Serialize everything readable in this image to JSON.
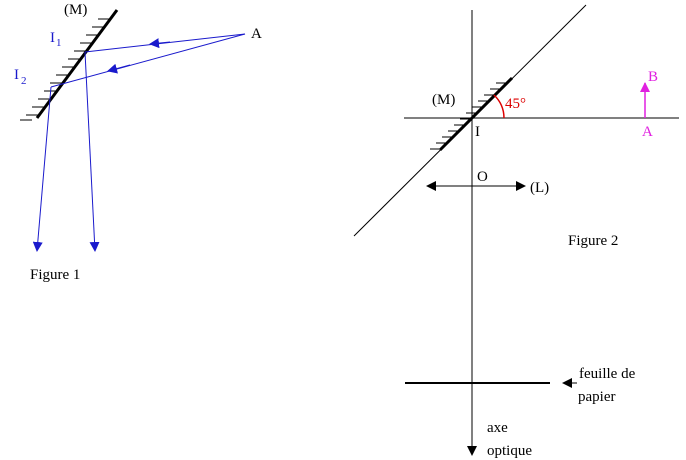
{
  "figure1": {
    "caption": "Figure 1",
    "mirror_label": "(M)",
    "point_a": "A",
    "point_i1": "I",
    "point_i1_sub": "1",
    "point_i2": "I",
    "point_i2_sub": "2"
  },
  "figure2": {
    "caption": "Figure 2",
    "mirror_label": "(M)",
    "angle_label": "45°",
    "point_i": "I",
    "point_a": "A",
    "point_b": "B",
    "lens_center": "O",
    "lens_label": "(L)",
    "paper_label_line1": "feuille de",
    "paper_label_line2": "papier",
    "axis_label_line1": "axe",
    "axis_label_line2": "optique"
  },
  "colors": {
    "ink": "#000000",
    "ray": "#1a1acc",
    "object": "#e020e0",
    "angle": "#dd0000"
  }
}
